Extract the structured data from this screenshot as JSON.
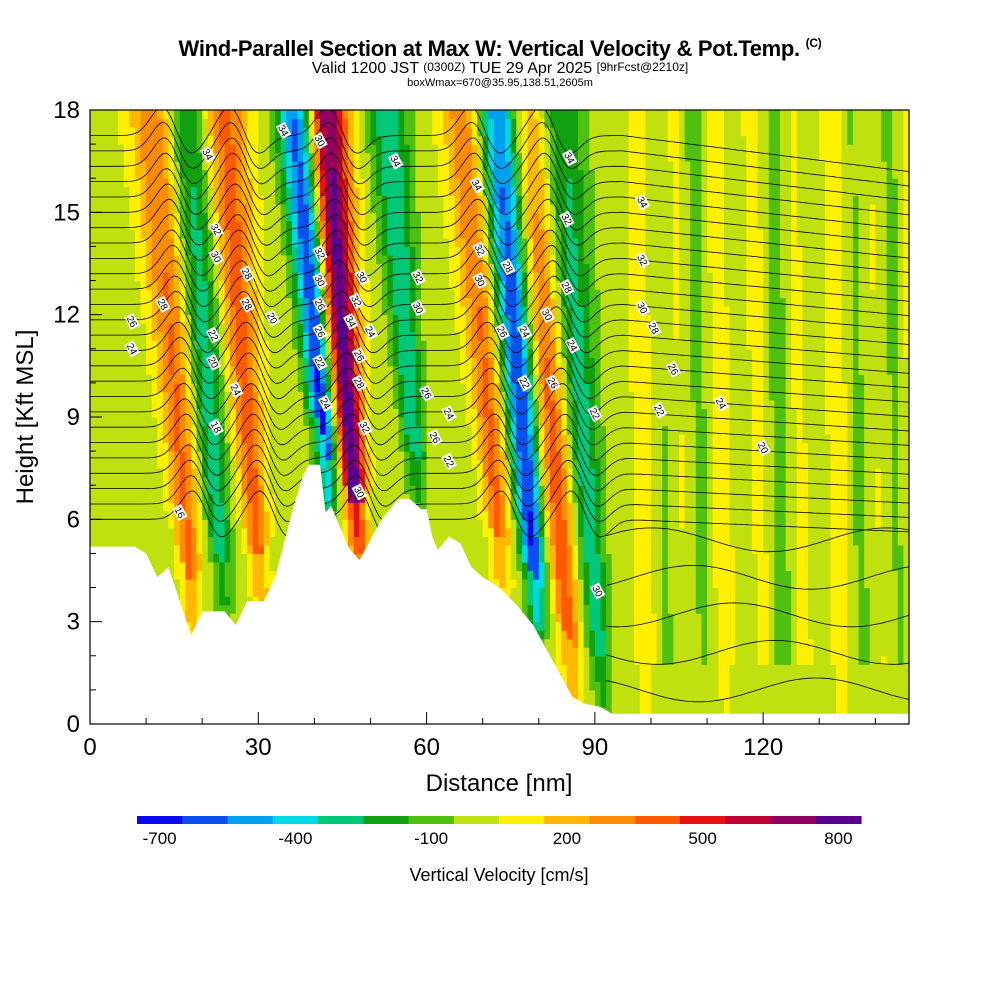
{
  "titles": {
    "main": "Wind-Parallel Section at Max W: Vertical Velocity & Pot.Temp.",
    "copyright": "(C)",
    "valid_prefix": "Valid 1200 JST",
    "valid_utc": "(0300Z)",
    "valid_date": "TUE 29 Apr 2025",
    "forecast_info": "[9hrFcst@2210z]",
    "box_info": "boxWmax=670@35.95,138.51,2605m"
  },
  "chart_data": {
    "type": "heatmap",
    "xlabel": "Distance [nm]",
    "ylabel": "Height [Kft MSL]",
    "xlim": [
      0,
      146
    ],
    "ylim": [
      0,
      18
    ],
    "x_ticks": [
      0,
      30,
      60,
      90,
      120
    ],
    "y_ticks": [
      0,
      3,
      6,
      9,
      12,
      15,
      18
    ],
    "grid": false,
    "colorbar": {
      "label": "Vertical Velocity [cm/s]",
      "tick_labels": [
        "-700",
        "-400",
        "-100",
        "200",
        "500",
        "800"
      ],
      "tick_values": [
        -700,
        -400,
        -100,
        200,
        500,
        800
      ],
      "range": [
        -750,
        850
      ],
      "colors": [
        "#0a0af0",
        "#0a50f0",
        "#00a0f0",
        "#00d8e6",
        "#00c878",
        "#10a010",
        "#50c010",
        "#c0e010",
        "#fff000",
        "#ffb800",
        "#ff8c00",
        "#ff5a00",
        "#e81010",
        "#c00030",
        "#900060",
        "#5a0090"
      ]
    },
    "terrain_kft": [
      [
        0,
        5.2
      ],
      [
        8,
        5.2
      ],
      [
        10,
        5
      ],
      [
        12,
        4.3
      ],
      [
        14,
        4.6
      ],
      [
        16,
        3.6
      ],
      [
        18,
        2.6
      ],
      [
        20,
        3.3
      ],
      [
        24,
        3.3
      ],
      [
        26,
        2.9
      ],
      [
        28,
        3.6
      ],
      [
        31,
        3.6
      ],
      [
        33,
        4.3
      ],
      [
        36,
        6.2
      ],
      [
        38,
        7.3
      ],
      [
        39,
        7.6
      ],
      [
        41,
        7.6
      ],
      [
        42,
        6.2
      ],
      [
        43,
        6.4
      ],
      [
        46,
        5.2
      ],
      [
        48,
        4.8
      ],
      [
        50,
        5.4
      ],
      [
        52,
        6
      ],
      [
        55,
        6.6
      ],
      [
        57,
        6.6
      ],
      [
        59,
        6.3
      ],
      [
        60,
        6.3
      ],
      [
        61,
        5.5
      ],
      [
        62,
        5.1
      ],
      [
        64,
        5.5
      ],
      [
        66,
        5.3
      ],
      [
        68,
        4.6
      ],
      [
        70,
        4.3
      ],
      [
        73,
        4
      ],
      [
        76,
        3.5
      ],
      [
        79,
        2.9
      ],
      [
        82,
        2
      ],
      [
        84,
        1.4
      ],
      [
        86,
        0.8
      ],
      [
        88,
        0.6
      ],
      [
        91,
        0.5
      ],
      [
        93,
        0.3
      ],
      [
        146,
        0.3
      ]
    ],
    "updraft_cores": [
      {
        "x": 18.5,
        "peak_cm_s": 350
      },
      {
        "x": 30.5,
        "peak_cm_s": 380
      },
      {
        "x": 48,
        "peak_cm_s": 820
      },
      {
        "x": 73.5,
        "peak_cm_s": 360
      },
      {
        "x": 86,
        "peak_cm_s": 400
      }
    ],
    "downdraft_cores": [
      {
        "x": 24,
        "peak_cm_s": -320
      },
      {
        "x": 42.5,
        "peak_cm_s": -700
      },
      {
        "x": 58.5,
        "peak_cm_s": -350
      },
      {
        "x": 80,
        "peak_cm_s": -680
      },
      {
        "x": 91.5,
        "peak_cm_s": -330
      }
    ],
    "theta_contour_labels": [
      {
        "x": 21,
        "y": 16.7,
        "text": "34"
      },
      {
        "x": 34.5,
        "y": 17.4,
        "text": "34"
      },
      {
        "x": 41,
        "y": 17.1,
        "text": "30"
      },
      {
        "x": 54.5,
        "y": 16.5,
        "text": "34"
      },
      {
        "x": 69,
        "y": 15.8,
        "text": "34"
      },
      {
        "x": 85.5,
        "y": 16.6,
        "text": "34"
      },
      {
        "x": 98.5,
        "y": 15.3,
        "text": "34"
      },
      {
        "x": 22.5,
        "y": 14.5,
        "text": "32"
      },
      {
        "x": 85,
        "y": 14.8,
        "text": "32"
      },
      {
        "x": 22.5,
        "y": 13.7,
        "text": "30"
      },
      {
        "x": 41,
        "y": 13.8,
        "text": "32"
      },
      {
        "x": 69.5,
        "y": 13.9,
        "text": "32"
      },
      {
        "x": 98.5,
        "y": 13.6,
        "text": "32"
      },
      {
        "x": 28,
        "y": 13.2,
        "text": "28"
      },
      {
        "x": 74.5,
        "y": 13.4,
        "text": "28"
      },
      {
        "x": 48.5,
        "y": 13.1,
        "text": "30"
      },
      {
        "x": 41,
        "y": 13,
        "text": "30"
      },
      {
        "x": 58.5,
        "y": 13.1,
        "text": "32"
      },
      {
        "x": 69.5,
        "y": 13,
        "text": "30"
      },
      {
        "x": 13,
        "y": 12.3,
        "text": "28"
      },
      {
        "x": 28,
        "y": 12.3,
        "text": "28"
      },
      {
        "x": 32.5,
        "y": 11.9,
        "text": "20"
      },
      {
        "x": 47.5,
        "y": 12.4,
        "text": "32"
      },
      {
        "x": 41,
        "y": 12.3,
        "text": "26"
      },
      {
        "x": 58.5,
        "y": 12.2,
        "text": "30"
      },
      {
        "x": 85,
        "y": 12.8,
        "text": "28"
      },
      {
        "x": 81.5,
        "y": 12,
        "text": "30"
      },
      {
        "x": 98.5,
        "y": 12.2,
        "text": "30"
      },
      {
        "x": 7.5,
        "y": 11.8,
        "text": "26"
      },
      {
        "x": 22,
        "y": 11.4,
        "text": "22"
      },
      {
        "x": 46.5,
        "y": 11.8,
        "text": "34"
      },
      {
        "x": 41,
        "y": 11.5,
        "text": "26"
      },
      {
        "x": 50,
        "y": 11.5,
        "text": "24"
      },
      {
        "x": 73.5,
        "y": 11.5,
        "text": "26"
      },
      {
        "x": 77.5,
        "y": 11.5,
        "text": "24"
      },
      {
        "x": 100.5,
        "y": 11.6,
        "text": "28"
      },
      {
        "x": 7.5,
        "y": 11,
        "text": "24"
      },
      {
        "x": 48,
        "y": 10.8,
        "text": "26"
      },
      {
        "x": 86,
        "y": 11.1,
        "text": "24"
      },
      {
        "x": 22,
        "y": 10.6,
        "text": "20"
      },
      {
        "x": 41,
        "y": 10.6,
        "text": "22"
      },
      {
        "x": 104,
        "y": 10.4,
        "text": "26"
      },
      {
        "x": 48,
        "y": 10,
        "text": "28"
      },
      {
        "x": 77.5,
        "y": 10,
        "text": "22"
      },
      {
        "x": 82.5,
        "y": 10,
        "text": "26"
      },
      {
        "x": 26,
        "y": 9.8,
        "text": "24"
      },
      {
        "x": 60,
        "y": 9.7,
        "text": "26"
      },
      {
        "x": 112.5,
        "y": 9.4,
        "text": "24"
      },
      {
        "x": 42,
        "y": 9.4,
        "text": "24"
      },
      {
        "x": 64,
        "y": 9.1,
        "text": "24"
      },
      {
        "x": 90,
        "y": 9.1,
        "text": "22"
      },
      {
        "x": 101.5,
        "y": 9.2,
        "text": "22"
      },
      {
        "x": 22.5,
        "y": 8.7,
        "text": "18"
      },
      {
        "x": 49,
        "y": 8.7,
        "text": "32"
      },
      {
        "x": 61.5,
        "y": 8.4,
        "text": "26"
      },
      {
        "x": 64,
        "y": 7.7,
        "text": "22"
      },
      {
        "x": 120,
        "y": 8.1,
        "text": "20"
      },
      {
        "x": 16,
        "y": 6.2,
        "text": "16"
      },
      {
        "x": 48,
        "y": 6.8,
        "text": "30"
      },
      {
        "x": 90.5,
        "y": 3.9,
        "text": "30"
      }
    ]
  }
}
